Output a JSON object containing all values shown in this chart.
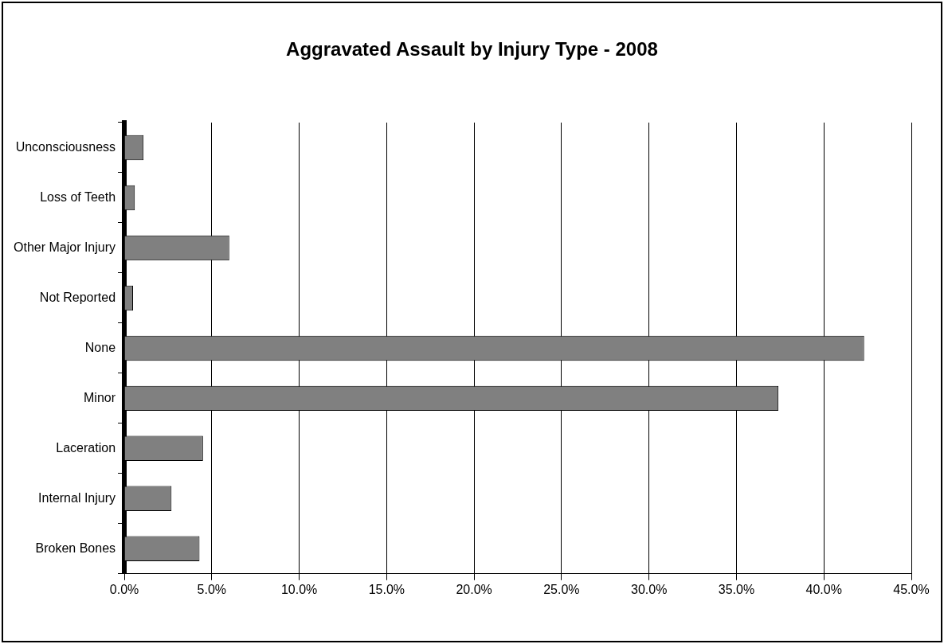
{
  "chart_data": {
    "type": "bar",
    "orientation": "horizontal",
    "title": "Aggravated Assault by Injury Type - 2008",
    "categories": [
      "Unconsciousness",
      "Loss of Teeth",
      "Other Major Injury",
      "Not Reported",
      "None",
      "Minor",
      "Laceration",
      "Internal Injury",
      "Broken Bones"
    ],
    "values": [
      1.1,
      0.6,
      6.0,
      0.5,
      42.3,
      37.4,
      4.5,
      2.7,
      4.3
    ],
    "color": "#808080",
    "xlim": [
      0,
      45
    ],
    "xticks": [
      {
        "value": 0,
        "label": "0.0%"
      },
      {
        "value": 5,
        "label": "5.0%"
      },
      {
        "value": 10,
        "label": "10.0%"
      },
      {
        "value": 15,
        "label": "15.0%"
      },
      {
        "value": 20,
        "label": "20.0%"
      },
      {
        "value": 25,
        "label": "25.0%"
      },
      {
        "value": 30,
        "label": "30.0%"
      },
      {
        "value": 35,
        "label": "35.0%"
      },
      {
        "value": 40,
        "label": "40.0%"
      },
      {
        "value": 45,
        "label": "45.0%"
      }
    ],
    "grid": "x"
  }
}
